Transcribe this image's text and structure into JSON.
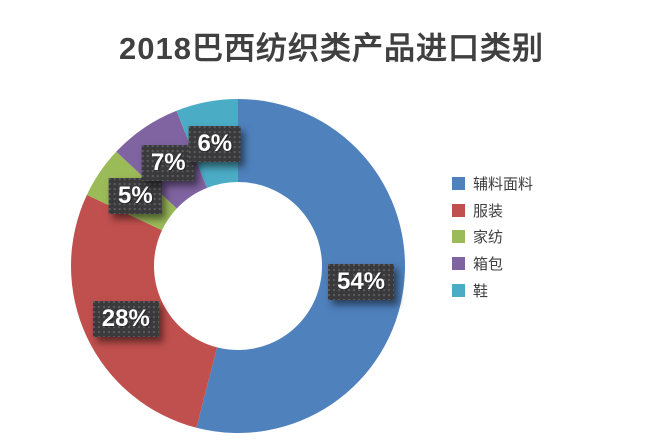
{
  "page": {
    "background": "#FFFFFF"
  },
  "chart_data": {
    "type": "pie",
    "subtype": "donut",
    "title": "2018巴西纺织类产品进口类别",
    "categories": [
      "辅料面料",
      "服装",
      "家纺",
      "箱包",
      "鞋"
    ],
    "values": [
      54,
      28,
      5,
      7,
      6
    ],
    "unit": "%",
    "data_labels": [
      "54%",
      "28%",
      "5%",
      "7%",
      "6%"
    ],
    "colors": [
      "#4F81BD",
      "#C0504D",
      "#9BBB59",
      "#8064A2",
      "#4BACC6"
    ],
    "start_angle_deg": 0,
    "direction": "clockwise",
    "legend_position": "right",
    "legend": [
      "辅料面料",
      "服装",
      "家纺",
      "箱包",
      "鞋"
    ]
  },
  "styles": {
    "title_color": "#404040",
    "data_label_bg": "#3A3A3C",
    "data_label_text": "#FFFFFF",
    "legend_bg": "#FFFFFF",
    "legend_text_color": "#404040",
    "page_bg": "#FFFFFF"
  }
}
